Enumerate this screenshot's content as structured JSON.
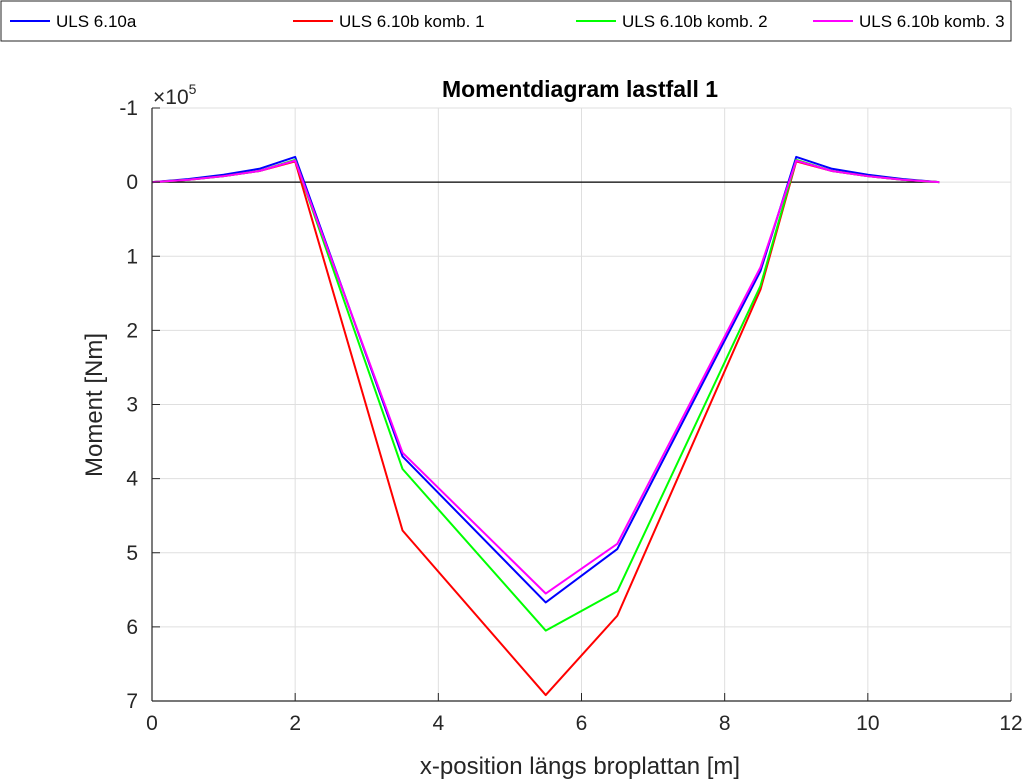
{
  "chart_data": {
    "type": "line",
    "title": "Momentdiagram lastfall 1",
    "xlabel": "x-position längs broplattan [m]",
    "ylabel": "Moment [Nm]",
    "xlim": [
      0,
      12
    ],
    "ylim": [
      -1,
      7
    ],
    "y_reversed": true,
    "y_multiplier_base": "×10",
    "y_multiplier_exponent": "5",
    "xticks": [
      "0",
      "2",
      "4",
      "6",
      "8",
      "10",
      "12"
    ],
    "yticks": [
      "-1",
      "0",
      "1",
      "2",
      "3",
      "4",
      "5",
      "6",
      "7"
    ],
    "grid": true,
    "legend_position": "top, outside, horizontal",
    "zero_line_color": "#000000",
    "series": [
      {
        "name": "ULS 6.10a",
        "color": "#0000ff",
        "x": [
          0,
          0.5,
          1.0,
          1.5,
          2.0,
          3.5,
          5.5,
          6.5,
          8.5,
          9.0,
          9.5,
          10.0,
          10.5,
          11.0
        ],
        "y": [
          0,
          -0.04,
          -0.1,
          -0.18,
          -0.34,
          3.7,
          5.67,
          4.95,
          1.2,
          -0.34,
          -0.18,
          -0.1,
          -0.04,
          0
        ]
      },
      {
        "name": "ULS 6.10b komb. 1",
        "color": "#ff0000",
        "x": [
          0,
          0.5,
          1.0,
          1.5,
          2.0,
          3.5,
          5.5,
          6.5,
          8.5,
          9.0,
          9.5,
          10.0,
          10.5,
          11.0
        ],
        "y": [
          0,
          -0.03,
          -0.08,
          -0.15,
          -0.28,
          4.7,
          6.92,
          5.85,
          1.45,
          -0.28,
          -0.15,
          -0.08,
          -0.03,
          0
        ]
      },
      {
        "name": "ULS 6.10b komb. 2",
        "color": "#00ff00",
        "x": [
          0,
          0.5,
          1.0,
          1.5,
          2.0,
          3.5,
          5.5,
          6.5,
          8.5,
          9.0,
          9.5,
          10.0,
          10.5,
          11.0
        ],
        "y": [
          0,
          -0.03,
          -0.08,
          -0.15,
          -0.3,
          3.87,
          6.05,
          5.52,
          1.4,
          -0.3,
          -0.15,
          -0.08,
          -0.03,
          0
        ]
      },
      {
        "name": "ULS 6.10b komb. 3",
        "color": "#ff00ff",
        "x": [
          0,
          0.5,
          1.0,
          1.5,
          2.0,
          3.5,
          5.5,
          6.5,
          8.5,
          9.0,
          9.5,
          10.0,
          10.5,
          11.0
        ],
        "y": [
          0,
          -0.03,
          -0.08,
          -0.15,
          -0.29,
          3.65,
          5.55,
          4.88,
          1.15,
          -0.29,
          -0.15,
          -0.08,
          -0.03,
          0
        ]
      }
    ]
  }
}
